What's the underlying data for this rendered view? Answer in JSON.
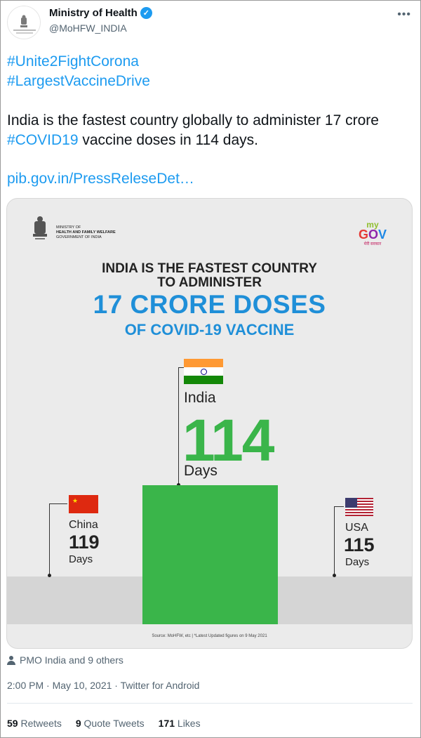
{
  "author": {
    "name": "Ministry of Health",
    "handle": "@MoHFW_INDIA",
    "verified": true
  },
  "tweet": {
    "hashtags": [
      "#Unite2FightCorona",
      "#LargestVaccineDrive"
    ],
    "text_before": "India is the fastest country globally to administer 17 crore ",
    "text_hashtag": "#COVID19",
    "text_after": " vaccine doses in 114 days.",
    "link": "pib.gov.in/PressReleseDet…"
  },
  "image": {
    "ministry_lines": [
      "MINISTRY OF",
      "HEALTH AND FAMILY WELFARE",
      "GOVERNMENT OF INDIA"
    ],
    "mygov": {
      "my": "my",
      "gov": "GOV",
      "sub": "मेरी सरकार"
    },
    "headline_line1": "INDIA IS THE FASTEST COUNTRY",
    "headline_line2": "TO ADMINISTER",
    "headline_big": "17 CRORE DOSES",
    "headline_sub": "OF COVID-19 VACCINE",
    "countries": [
      {
        "name": "India",
        "value": "114",
        "unit": "Days"
      },
      {
        "name": "China",
        "value": "119",
        "unit": "Days"
      },
      {
        "name": "USA",
        "value": "115",
        "unit": "Days"
      }
    ],
    "source": "Source: MoHFW, etc  |  *Latest Updated figures on 9 May 2021",
    "colors": {
      "india_green": "#3ab54a",
      "headline_blue": "#1f8fd8"
    }
  },
  "context": {
    "icon": "person-icon",
    "text": "PMO India and 9 others"
  },
  "timestamp": "2:00 PM · May 10, 2021 · Twitter for Android",
  "stats": [
    {
      "count": "59",
      "label": "Retweets"
    },
    {
      "count": "9",
      "label": "Quote Tweets"
    },
    {
      "count": "171",
      "label": "Likes"
    }
  ]
}
